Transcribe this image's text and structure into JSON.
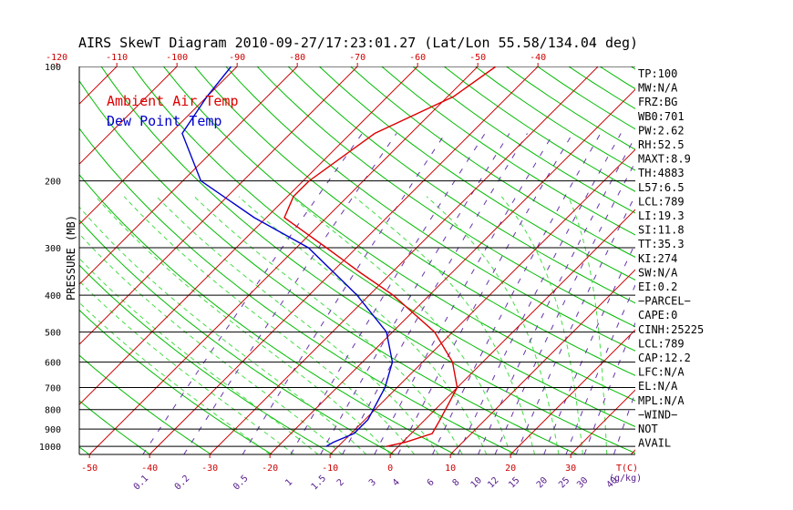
{
  "chart_data": {
    "type": "line",
    "title": "AIRS SkewT Diagram 2010-09-27/17:23:01.27 (Lat/Lon 55.58/134.04 deg)",
    "ylabel": "PRESSURE (MB)",
    "pressure_labels": [
      "100",
      "200",
      "300",
      "400",
      "500",
      "600",
      "700",
      "800",
      "900",
      "1000"
    ],
    "pressure_values": [
      100,
      200,
      300,
      400,
      500,
      600,
      700,
      800,
      900,
      1000
    ],
    "top_temp_labels": [
      "-120",
      "-110",
      "-100",
      "-90",
      "-80",
      "-70",
      "-60",
      "-50",
      "-40"
    ],
    "top_temp_values": [
      -120,
      -110,
      -100,
      -90,
      -80,
      -70,
      -60,
      -50,
      -40
    ],
    "bottom_temp_labels": [
      "-50",
      "-40",
      "-30",
      "-20",
      "-10",
      "0",
      "10",
      "20",
      "30"
    ],
    "bottom_temp_values": [
      -50,
      -40,
      -30,
      -20,
      -10,
      0,
      10,
      20,
      30
    ],
    "bottom_temp_unit": "T(C)",
    "mixing_ratio_labels": [
      "0.1",
      "0.2",
      "0.5",
      "1",
      "1.5",
      "2",
      "3",
      "4",
      "6",
      "8",
      "10",
      "12",
      "15",
      "20",
      "25",
      "30",
      "40"
    ],
    "mixing_ratio_values": [
      0.1,
      0.2,
      0.5,
      1,
      1.5,
      2,
      3,
      4,
      6,
      8,
      10,
      12,
      15,
      20,
      25,
      30,
      40
    ],
    "mixing_ratio_unit": "(g/kg)",
    "legend": [
      {
        "name": "Ambient Air Temp",
        "color": "#dd0000"
      },
      {
        "name": "Dew Point Temp",
        "color": "#0000cc"
      }
    ],
    "series": [
      {
        "name": "Ambient Air Temp",
        "color": "#dd0000",
        "points": [
          {
            "p": 1000,
            "t": -2
          },
          {
            "p": 975,
            "t": 0.5
          },
          {
            "p": 925,
            "t": 3.5
          },
          {
            "p": 850,
            "t": 2.5
          },
          {
            "p": 700,
            "t": 0
          },
          {
            "p": 600,
            "t": -5
          },
          {
            "p": 500,
            "t": -13
          },
          {
            "p": 400,
            "t": -26
          },
          {
            "p": 350,
            "t": -35
          },
          {
            "p": 300,
            "t": -45
          },
          {
            "p": 250,
            "t": -57
          },
          {
            "p": 220,
            "t": -59
          },
          {
            "p": 200,
            "t": -59
          },
          {
            "p": 150,
            "t": -56
          },
          {
            "p": 120,
            "t": -49
          },
          {
            "p": 100,
            "t": -47
          }
        ]
      },
      {
        "name": "Dew Point Temp",
        "color": "#0000cc",
        "points": [
          {
            "p": 1000,
            "t": -12
          },
          {
            "p": 975,
            "t": -11.5
          },
          {
            "p": 925,
            "t": -9.5
          },
          {
            "p": 850,
            "t": -9.5
          },
          {
            "p": 700,
            "t": -12
          },
          {
            "p": 600,
            "t": -15
          },
          {
            "p": 500,
            "t": -21
          },
          {
            "p": 400,
            "t": -32
          },
          {
            "p": 300,
            "t": -48
          },
          {
            "p": 250,
            "t": -62
          },
          {
            "p": 200,
            "t": -77
          },
          {
            "p": 150,
            "t": -88
          },
          {
            "p": 120,
            "t": -90
          },
          {
            "p": 100,
            "t": -91
          }
        ]
      }
    ]
  },
  "indices": [
    "TP:100",
    "MW:N/A",
    "FRZ:BG",
    "WB0:701",
    "PW:2.62",
    "RH:52.5",
    "MAXT:8.9",
    "TH:4883",
    "L57:6.5",
    "LCL:789",
    "LI:19.3",
    "SI:11.8",
    "TT:35.3",
    "KI:274",
    "SW:N/A",
    "EI:0.2",
    "−PARCEL−",
    "CAPE:0",
    "CINH:25225",
    "LCL:789",
    "CAP:12.2",
    "LFC:N/A",
    "EL:N/A",
    "MPL:N/A",
    "−WIND−",
    "NOT",
    "AVAIL"
  ]
}
